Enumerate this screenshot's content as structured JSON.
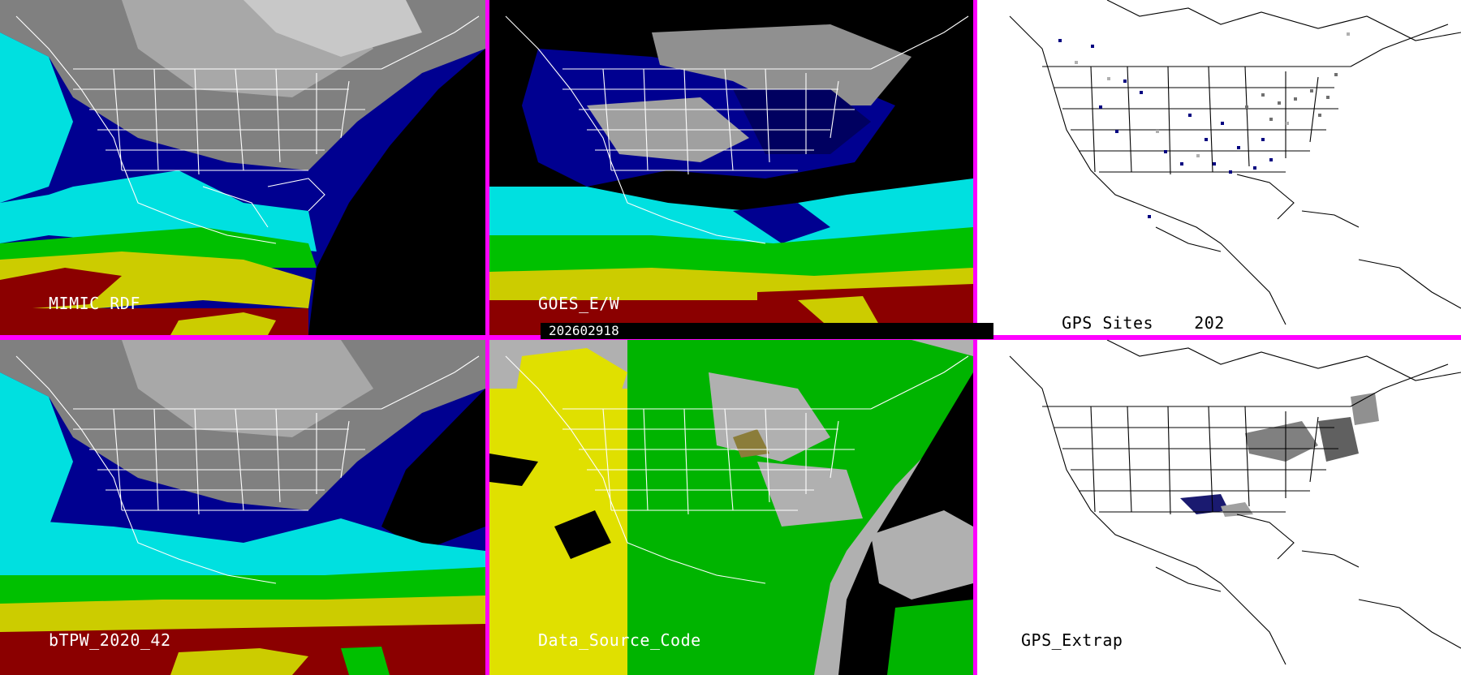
{
  "panels": {
    "mimic_rdf": {
      "label": "MIMIC RDF"
    },
    "goes_ew": {
      "label": "GOES_E/W"
    },
    "gps_sites": {
      "label": "GPS Sites",
      "count": "202"
    },
    "btpw": {
      "label": "bTPW_2020_42"
    },
    "data_source": {
      "label": "Data_Source_Code"
    },
    "gps_extrap": {
      "label": "GPS_Extrap"
    }
  },
  "timestamp": "202602918",
  "colors": {
    "divider": "#ff00ff",
    "tpw_scale": [
      "#8b0000",
      "#cccc00",
      "#00c000",
      "#00e0e0",
      "#000090",
      "#808080",
      "#000000"
    ],
    "source_codes": [
      "#e0e000",
      "#00b400",
      "#b0b0b0",
      "#000000"
    ]
  }
}
